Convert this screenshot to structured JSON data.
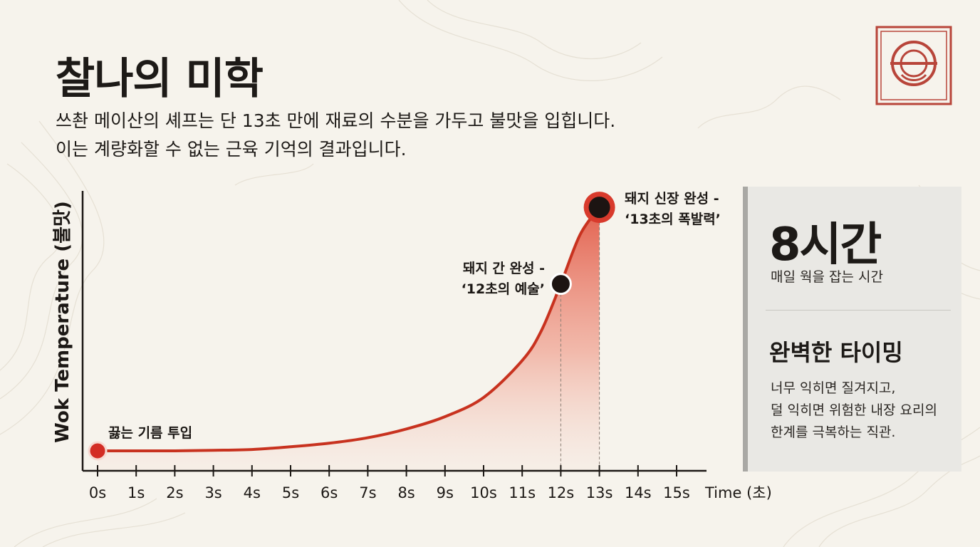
{
  "title": "찰나의 미학",
  "subtitle_lines": [
    "쓰촨 메이산의 셰프는 단 13초 만에 재료의 수분을 가두고 불맛을 입힙니다.",
    "이는 계량화할 수 없는 근육 기억의 결과입니다."
  ],
  "colors": {
    "accent": "#c42a1e",
    "curve": "#c8321f",
    "dark_point": "#1c1412",
    "sidebar_bg": "#e9e8e4",
    "sidebar_border": "#a9a8a4"
  },
  "seal_icon": "chef-seal-logo",
  "chart_data": {
    "type": "line",
    "xlabel": "Time (초)",
    "ylabel": "Wok Temperature (불맛)",
    "x_ticks": [
      "0s",
      "1s",
      "2s",
      "3s",
      "4s",
      "5s",
      "6s",
      "7s",
      "8s",
      "9s",
      "10s",
      "11s",
      "12s",
      "13s",
      "14s",
      "15s"
    ],
    "xlim": [
      0,
      15
    ],
    "ylim": [
      0,
      100
    ],
    "grid": false,
    "series": [
      {
        "x": [
          0,
          1,
          2,
          3,
          4,
          5,
          6,
          7,
          8,
          9,
          10,
          11,
          11.5,
          12,
          12.5,
          13
        ],
        "y": [
          0,
          0,
          0,
          0.2,
          0.5,
          1.5,
          2.8,
          4.8,
          8,
          12.5,
          19.5,
          33,
          44,
          61,
          79,
          89
        ]
      }
    ],
    "points": [
      {
        "x": 0,
        "y": 0,
        "label_lines": [
          "끓는 기름 투입"
        ],
        "color": "#d32c24",
        "size": "small"
      },
      {
        "x": 12,
        "y": 61,
        "label_lines": [
          "돼지 간 완성 -",
          "‘12초의 예술’"
        ],
        "color": "#1c1412",
        "size": "medium"
      },
      {
        "x": 13,
        "y": 89,
        "label_lines": [
          "돼지 신장 완성 -",
          "‘13초의 폭발력’"
        ],
        "color": "#1c1412",
        "size": "large"
      }
    ],
    "guide_lines_x": [
      12,
      13
    ]
  },
  "sidebar": {
    "stat_value": "8시간",
    "stat_label": "매일 웍을 잡는 시간",
    "timing_title": "완벽한 타이밍",
    "timing_lines": [
      "너무 익히면 질겨지고,",
      "덜 익히면 위험한 내장 요리의",
      "한계를 극복하는 직관."
    ]
  }
}
